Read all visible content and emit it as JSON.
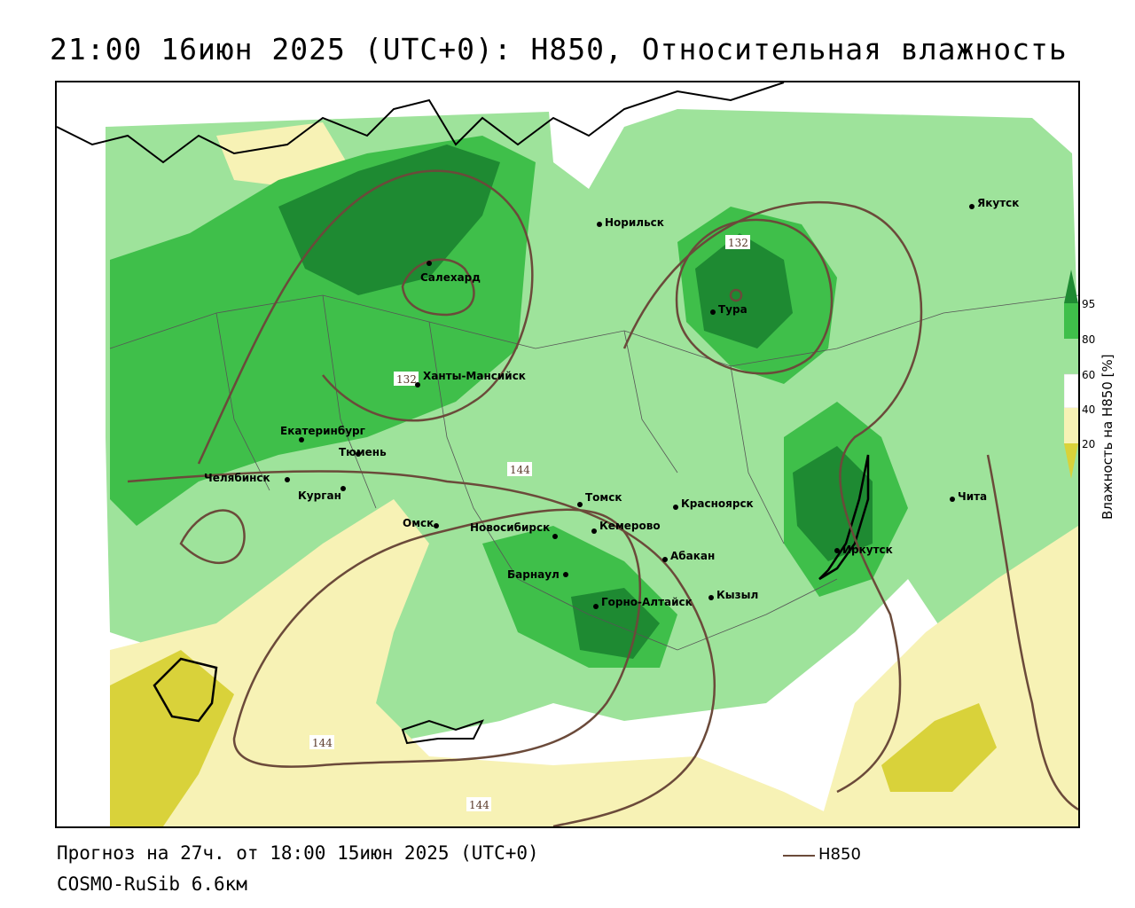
{
  "title": "21:00 16июн 2025 (UTC+0): H850, Относительная влажность",
  "footer": {
    "forecast": "Прогноз на 27ч. от 18:00 15июн 2025 (UTC+0)",
    "model": "COSMO-RuSib 6.6км"
  },
  "legend": {
    "contour_label": "H850",
    "contour_color": "#6b4a3a"
  },
  "colorbar": {
    "title": "Влажность на H850 [%]",
    "ticks": [
      "95",
      "80",
      "60",
      "40",
      "20"
    ],
    "colors": [
      "#1e8a32",
      "#3fbf4a",
      "#9ee39b",
      "#ffffff",
      "#f7f2b5",
      "#d9d23a"
    ]
  },
  "cities": [
    {
      "name": "Салехард",
      "id": "salekhard"
    },
    {
      "name": "Норильск",
      "id": "norilsk"
    },
    {
      "name": "Якутск",
      "id": "yakutsk"
    },
    {
      "name": "Тура",
      "id": "tura"
    },
    {
      "name": "Ханты-Мансийск",
      "id": "khanty"
    },
    {
      "name": "Екатеринбург",
      "id": "ekb"
    },
    {
      "name": "Тюмень",
      "id": "tyumen"
    },
    {
      "name": "Челябинск",
      "id": "chelyabinsk"
    },
    {
      "name": "Курган",
      "id": "kurgan"
    },
    {
      "name": "Омск",
      "id": "omsk"
    },
    {
      "name": "Новосибирск",
      "id": "novosibirsk"
    },
    {
      "name": "Томск",
      "id": "tomsk"
    },
    {
      "name": "Кемерово",
      "id": "kemerovo"
    },
    {
      "name": "Красноярск",
      "id": "krasnoyarsk"
    },
    {
      "name": "Барнаул",
      "id": "barnaul"
    },
    {
      "name": "Абакан",
      "id": "abakan"
    },
    {
      "name": "Горно-Алтайск",
      "id": "gorno"
    },
    {
      "name": "Кызыл",
      "id": "kyzyl"
    },
    {
      "name": "Иркутск",
      "id": "irkutsk"
    },
    {
      "name": "Чита",
      "id": "chita"
    }
  ],
  "contour_labels": [
    "132",
    "132",
    "144",
    "144",
    "144"
  ]
}
